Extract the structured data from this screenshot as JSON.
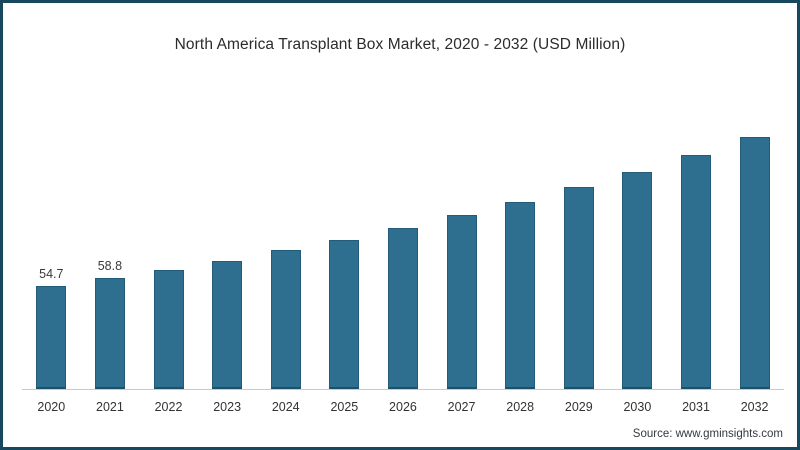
{
  "frame": {
    "border_color": "#17485d",
    "background_color": "#ffffff"
  },
  "chart_data": {
    "type": "bar",
    "title": "North America Transplant Box Market, 2020 - 2032 (USD Million)",
    "categories": [
      "2020",
      "2021",
      "2022",
      "2023",
      "2024",
      "2025",
      "2026",
      "2027",
      "2028",
      "2029",
      "2030",
      "2031",
      "2032"
    ],
    "values": [
      54.7,
      58.8,
      63.4,
      68.3,
      73.7,
      79.4,
      85.6,
      92.3,
      99.5,
      107.2,
      115.6,
      124.6,
      134.3
    ],
    "data_labels": [
      "54.7",
      "58.8",
      "",
      "",
      "",
      "",
      "",
      "",
      "",
      "",
      "",
      "",
      ""
    ],
    "xlabel": "",
    "ylabel": "",
    "ylim": [
      0,
      140
    ],
    "grid": false,
    "legend": false,
    "y_axis_visible": false,
    "bar_color": "#2e6e8e",
    "axis_line_color": "#c9c9c9",
    "label_color": "#3a3a3a"
  },
  "source": {
    "text": "Source: www.gminsights.com"
  }
}
